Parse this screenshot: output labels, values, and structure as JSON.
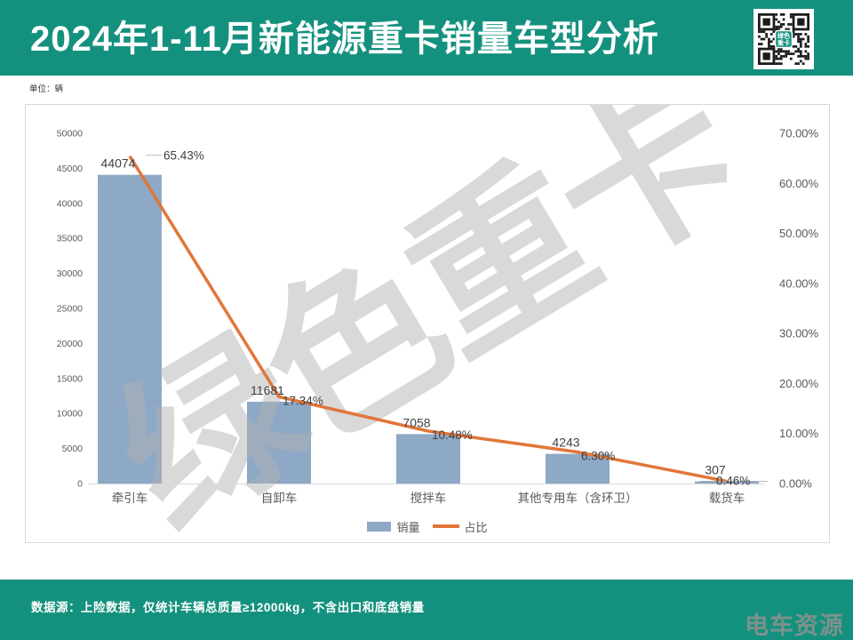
{
  "header": {
    "title": "2024年1-11月新能源重卡销量车型分析",
    "qr_center_text": "绿色重卡"
  },
  "unit_label": "单位：辆",
  "watermark": {
    "text": "绿色重卡"
  },
  "chart_data": {
    "type": "bar",
    "title": "",
    "categories": [
      "牵引车",
      "自卸车",
      "搅拌车",
      "其他专用车（含环卫）",
      "载货车"
    ],
    "series": [
      {
        "name": "销量",
        "type": "bar",
        "axis": "left",
        "color": "#8ea9c6",
        "values": [
          44074,
          11681,
          7058,
          4243,
          307
        ],
        "data_labels": [
          "44074",
          "11681",
          "7058",
          "4243",
          "307"
        ]
      },
      {
        "name": "占比",
        "type": "line",
        "axis": "right",
        "color": "#e1763a",
        "values": [
          65.43,
          17.34,
          10.48,
          6.3,
          0.46
        ],
        "data_labels": [
          "65.43%",
          "17.34%",
          "10.48%",
          "6.30%",
          "0.46%"
        ]
      }
    ],
    "left_axis": {
      "min": 0,
      "max": 50000,
      "step": 5000,
      "tick_labels": [
        "0",
        "5000",
        "10000",
        "15000",
        "20000",
        "25000",
        "30000",
        "35000",
        "40000",
        "45000",
        "50000"
      ]
    },
    "right_axis": {
      "min": 0,
      "max": 70,
      "step": 10,
      "tick_labels": [
        "0.00%",
        "10.00%",
        "20.00%",
        "30.00%",
        "40.00%",
        "50.00%",
        "60.00%",
        "70.00%"
      ]
    },
    "legend": {
      "position": "bottom",
      "entries": [
        "销量",
        "占比"
      ]
    },
    "grid": false
  },
  "footer": {
    "source_note": "数据源：上险数据，仅统计车辆总质量≥12000kg，不含出口和底盘销量",
    "logo_text": "电车资源"
  },
  "colors": {
    "accent_teal": "#14917e",
    "bar_blue": "#8ea9c6",
    "line_orange": "#e1763a",
    "watermark_gray": "#b0b0b0",
    "axis_text": "#595959",
    "label_text": "#404040",
    "panel_border": "#d9d9d9"
  }
}
